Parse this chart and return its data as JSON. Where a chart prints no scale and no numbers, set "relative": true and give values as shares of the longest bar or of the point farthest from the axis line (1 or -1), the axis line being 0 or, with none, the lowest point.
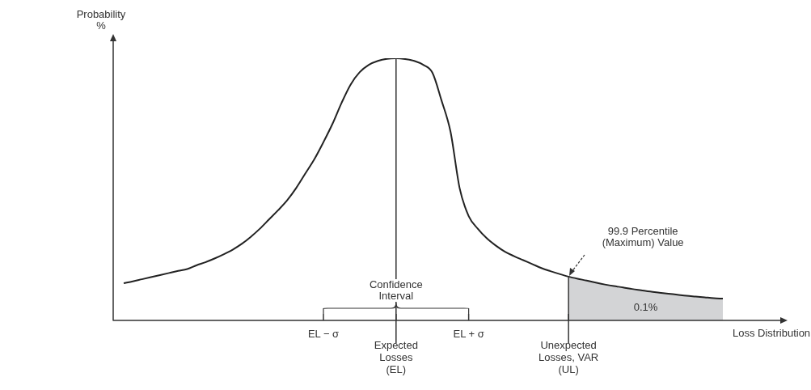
{
  "chart_data": {
    "type": "line",
    "relative": true,
    "legend": false,
    "ylabel": "Probability\n%",
    "xlabel": "Loss Distribution",
    "categories": [
      null,
      null,
      null,
      null,
      null,
      null,
      null,
      null,
      null,
      null,
      null,
      null,
      null,
      null,
      null,
      null,
      null,
      null,
      null,
      null,
      null,
      null,
      "EL − σ",
      null,
      null,
      null,
      null,
      null,
      null,
      null,
      "Expected\nLosses\n(EL)",
      null,
      null,
      null,
      null,
      null,
      null,
      null,
      "EL + σ",
      null,
      null,
      null,
      null,
      null,
      null,
      null,
      null,
      null,
      null,
      "Unexpected\nLosses, VAR\n(UL)",
      null,
      null,
      null,
      null,
      null,
      null,
      null,
      null,
      null,
      null,
      null,
      null,
      null,
      null,
      null,
      null,
      null
    ],
    "series": [
      {
        "type": "line",
        "color": "#222222",
        "values": [
          0.142,
          0.149,
          0.157,
          0.165,
          0.173,
          0.181,
          0.189,
          0.196,
          0.21,
          0.222,
          0.236,
          0.252,
          0.27,
          0.292,
          0.319,
          0.35,
          0.385,
          0.42,
          0.458,
          0.505,
          0.56,
          0.615,
          0.68,
          0.75,
          0.83,
          0.9,
          0.947,
          0.975,
          0.99,
          0.998,
          1,
          0.997,
          0.99,
          0.975,
          0.945,
          0.84,
          0.72,
          0.505,
          0.398,
          0.35,
          0.313,
          0.285,
          0.262,
          0.245,
          0.23,
          0.215,
          0.2,
          0.188,
          0.177,
          0.167,
          0.159,
          0.152,
          0.144,
          0.137,
          0.131,
          0.126,
          0.12,
          0.115,
          0.11,
          0.106,
          0.102,
          0.098,
          0.094,
          0.091,
          0.088,
          0.085,
          0.083
        ]
      },
      {
        "type": "area",
        "color": "#d3d4d6",
        "values": [
          null,
          null,
          null,
          null,
          null,
          null,
          null,
          null,
          null,
          null,
          null,
          null,
          null,
          null,
          null,
          null,
          null,
          null,
          null,
          null,
          null,
          null,
          null,
          null,
          null,
          null,
          null,
          null,
          null,
          null,
          null,
          null,
          null,
          null,
          null,
          null,
          null,
          null,
          null,
          null,
          null,
          null,
          null,
          null,
          null,
          null,
          null,
          null,
          null,
          0.167,
          0.159,
          0.152,
          0.144,
          0.137,
          0.131,
          0.126,
          0.12,
          0.115,
          0.11,
          0.106,
          0.102,
          0.098,
          0.094,
          0.091,
          0.088,
          0.085,
          0.083
        ]
      }
    ],
    "ref_lines": [
      {
        "axis": "x",
        "value": "Expected\nLosses\n(EL)"
      },
      {
        "axis": "x",
        "value": "Unexpected\nLosses, VAR\n(UL)"
      }
    ],
    "annotations": [
      "99.9 Percentile\n(Maximum) Value",
      "0.1%",
      "Confidence\nInterval"
    ]
  }
}
